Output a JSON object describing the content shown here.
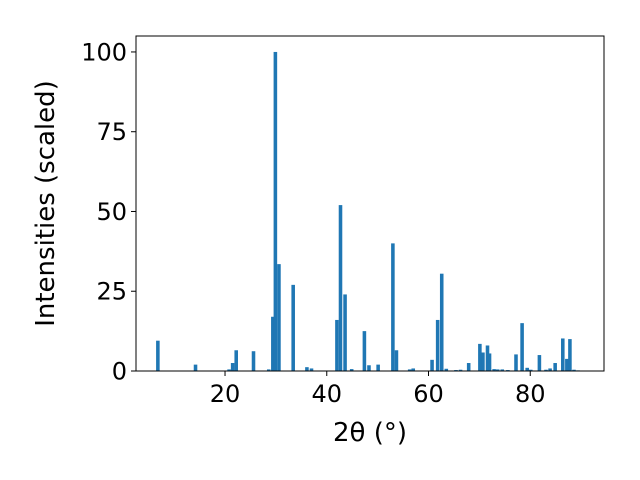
{
  "chart_data": {
    "type": "bar",
    "xlabel": "2θ (°)",
    "ylabel": "Intensities (scaled)",
    "xlim": [
      2.5,
      94.5
    ],
    "ylim": [
      0,
      105
    ],
    "xticks": [
      20,
      40,
      60,
      80
    ],
    "yticks": [
      0,
      25,
      50,
      75,
      100
    ],
    "grid": false,
    "color": "#1f77b4",
    "bar_width": 0.7,
    "x": [
      6.8,
      14.2,
      20.8,
      21.5,
      22.2,
      25.6,
      28.6,
      29.4,
      29.9,
      30.6,
      33.4,
      36.1,
      37.0,
      42.0,
      42.7,
      43.6,
      44.9,
      47.4,
      48.3,
      50.1,
      53.0,
      53.7,
      56.3,
      57.0,
      60.7,
      61.8,
      62.6,
      63.5,
      65.4,
      66.3,
      67.9,
      70.1,
      70.7,
      71.6,
      72.0,
      72.9,
      73.6,
      74.5,
      75.6,
      77.2,
      78.4,
      79.4,
      80.1,
      81.8,
      83.1,
      83.9,
      84.9,
      86.4,
      87.2,
      87.8,
      88.6,
      89.4
    ],
    "values": [
      9.5,
      2.0,
      0.5,
      2.5,
      6.5,
      6.2,
      0.5,
      17.0,
      100.0,
      33.5,
      27.0,
      1.2,
      0.8,
      16.0,
      52.0,
      24.0,
      0.6,
      12.5,
      1.8,
      2.0,
      40.0,
      6.5,
      0.5,
      0.8,
      3.5,
      16.0,
      30.5,
      0.7,
      0.3,
      0.4,
      2.5,
      8.5,
      5.8,
      8.0,
      5.5,
      0.6,
      0.5,
      0.5,
      0.3,
      5.2,
      15.0,
      1.0,
      0.4,
      5.0,
      0.4,
      0.8,
      2.5,
      10.2,
      3.8,
      10.0,
      0.4,
      0.2
    ]
  }
}
